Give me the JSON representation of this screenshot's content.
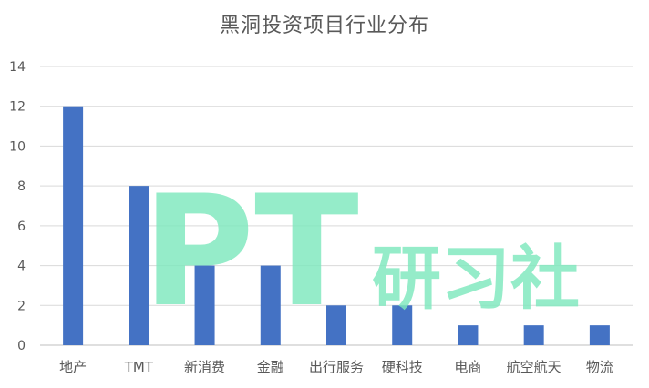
{
  "chart_data": {
    "type": "bar",
    "title": "黑洞投资项目行业分布",
    "categories": [
      "地产",
      "TMT",
      "新消费",
      "金融",
      "出行服务",
      "硬科技",
      "电商",
      "航空航天",
      "物流"
    ],
    "series": [
      {
        "values": [
          12,
          8,
          4,
          4,
          2,
          2,
          1,
          1,
          1
        ]
      }
    ],
    "ylim": [
      0,
      14
    ],
    "yticks": [
      0,
      2,
      4,
      6,
      8,
      10,
      12,
      14
    ],
    "grid": true,
    "legend": "none",
    "colors": {
      "bar": "#4472c4",
      "grid": "#d9d9d9",
      "axis": "#bfbfbf",
      "text": "#595959",
      "watermark": "#7ee8bd"
    }
  },
  "watermark": {
    "latin": "PT",
    "cjk": "研习社"
  }
}
